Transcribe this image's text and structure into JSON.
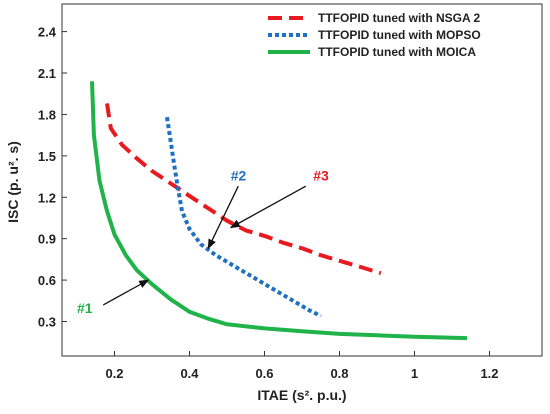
{
  "chart_data": {
    "type": "line",
    "xlabel": "ITAE (s². p.u.)",
    "ylabel": "ISC (p. u². s)",
    "xlim": [
      0.06,
      1.34
    ],
    "ylim": [
      0.05,
      2.6
    ],
    "xticks": [
      0.2,
      0.4,
      0.6,
      0.8,
      1.0,
      1.2
    ],
    "xtick_labels": [
      "0.2",
      "0.4",
      "0.6",
      "0.8",
      "1",
      "1.2"
    ],
    "yticks": [
      0.3,
      0.6,
      0.9,
      1.2,
      1.5,
      1.8,
      2.1,
      2.4
    ],
    "ytick_labels": [
      "0.3",
      "0.6",
      "0.9",
      "1.2",
      "1.5",
      "1.8",
      "2.1",
      "2.4"
    ],
    "grid": false,
    "legend_position": "top-right",
    "series": [
      {
        "name": "TTFOPID tuned with NSGA 2",
        "color": "#e8191f",
        "dash": "dashed",
        "x": [
          0.18,
          0.19,
          0.22,
          0.26,
          0.3,
          0.35,
          0.4,
          0.45,
          0.5,
          0.55,
          0.6,
          0.65,
          0.7,
          0.75,
          0.8,
          0.85,
          0.91
        ],
        "y": [
          1.88,
          1.7,
          1.58,
          1.48,
          1.39,
          1.3,
          1.21,
          1.12,
          1.03,
          0.96,
          0.92,
          0.87,
          0.83,
          0.78,
          0.74,
          0.7,
          0.65
        ]
      },
      {
        "name": "TTFOPID tuned with MOPSO",
        "color": "#1f6fc2",
        "dash": "dotted",
        "x": [
          0.34,
          0.35,
          0.36,
          0.37,
          0.38,
          0.4,
          0.43,
          0.47,
          0.52,
          0.57,
          0.62,
          0.67,
          0.72,
          0.75
        ],
        "y": [
          1.78,
          1.6,
          1.42,
          1.25,
          1.1,
          0.97,
          0.86,
          0.78,
          0.7,
          0.62,
          0.54,
          0.46,
          0.38,
          0.34
        ]
      },
      {
        "name": "TTFOPID tuned with MOICA",
        "color": "#1fb34a",
        "dash": "solid",
        "x": [
          0.14,
          0.145,
          0.16,
          0.18,
          0.2,
          0.23,
          0.26,
          0.3,
          0.35,
          0.4,
          0.45,
          0.5,
          0.6,
          0.7,
          0.8,
          0.9,
          1.0,
          1.14
        ],
        "y": [
          2.04,
          1.65,
          1.32,
          1.1,
          0.93,
          0.78,
          0.67,
          0.57,
          0.46,
          0.37,
          0.32,
          0.28,
          0.25,
          0.23,
          0.21,
          0.2,
          0.19,
          0.18
        ]
      }
    ],
    "annotations": [
      {
        "label": "#1",
        "color": "#1fb34a",
        "text_x": 0.1,
        "text_y": 0.36,
        "arrow_from_x": 0.17,
        "arrow_from_y": 0.42,
        "arrow_to_x": 0.29,
        "arrow_to_y": 0.6
      },
      {
        "label": "#2",
        "color": "#1f6fc2",
        "text_x": 0.51,
        "text_y": 1.32,
        "arrow_from_x": 0.53,
        "arrow_from_y": 1.28,
        "arrow_to_x": 0.45,
        "arrow_to_y": 0.83
      },
      {
        "label": "#3",
        "color": "#e8191f",
        "text_x": 0.73,
        "text_y": 1.32,
        "arrow_from_x": 0.71,
        "arrow_from_y": 1.28,
        "arrow_to_x": 0.51,
        "arrow_to_y": 0.98
      }
    ]
  }
}
